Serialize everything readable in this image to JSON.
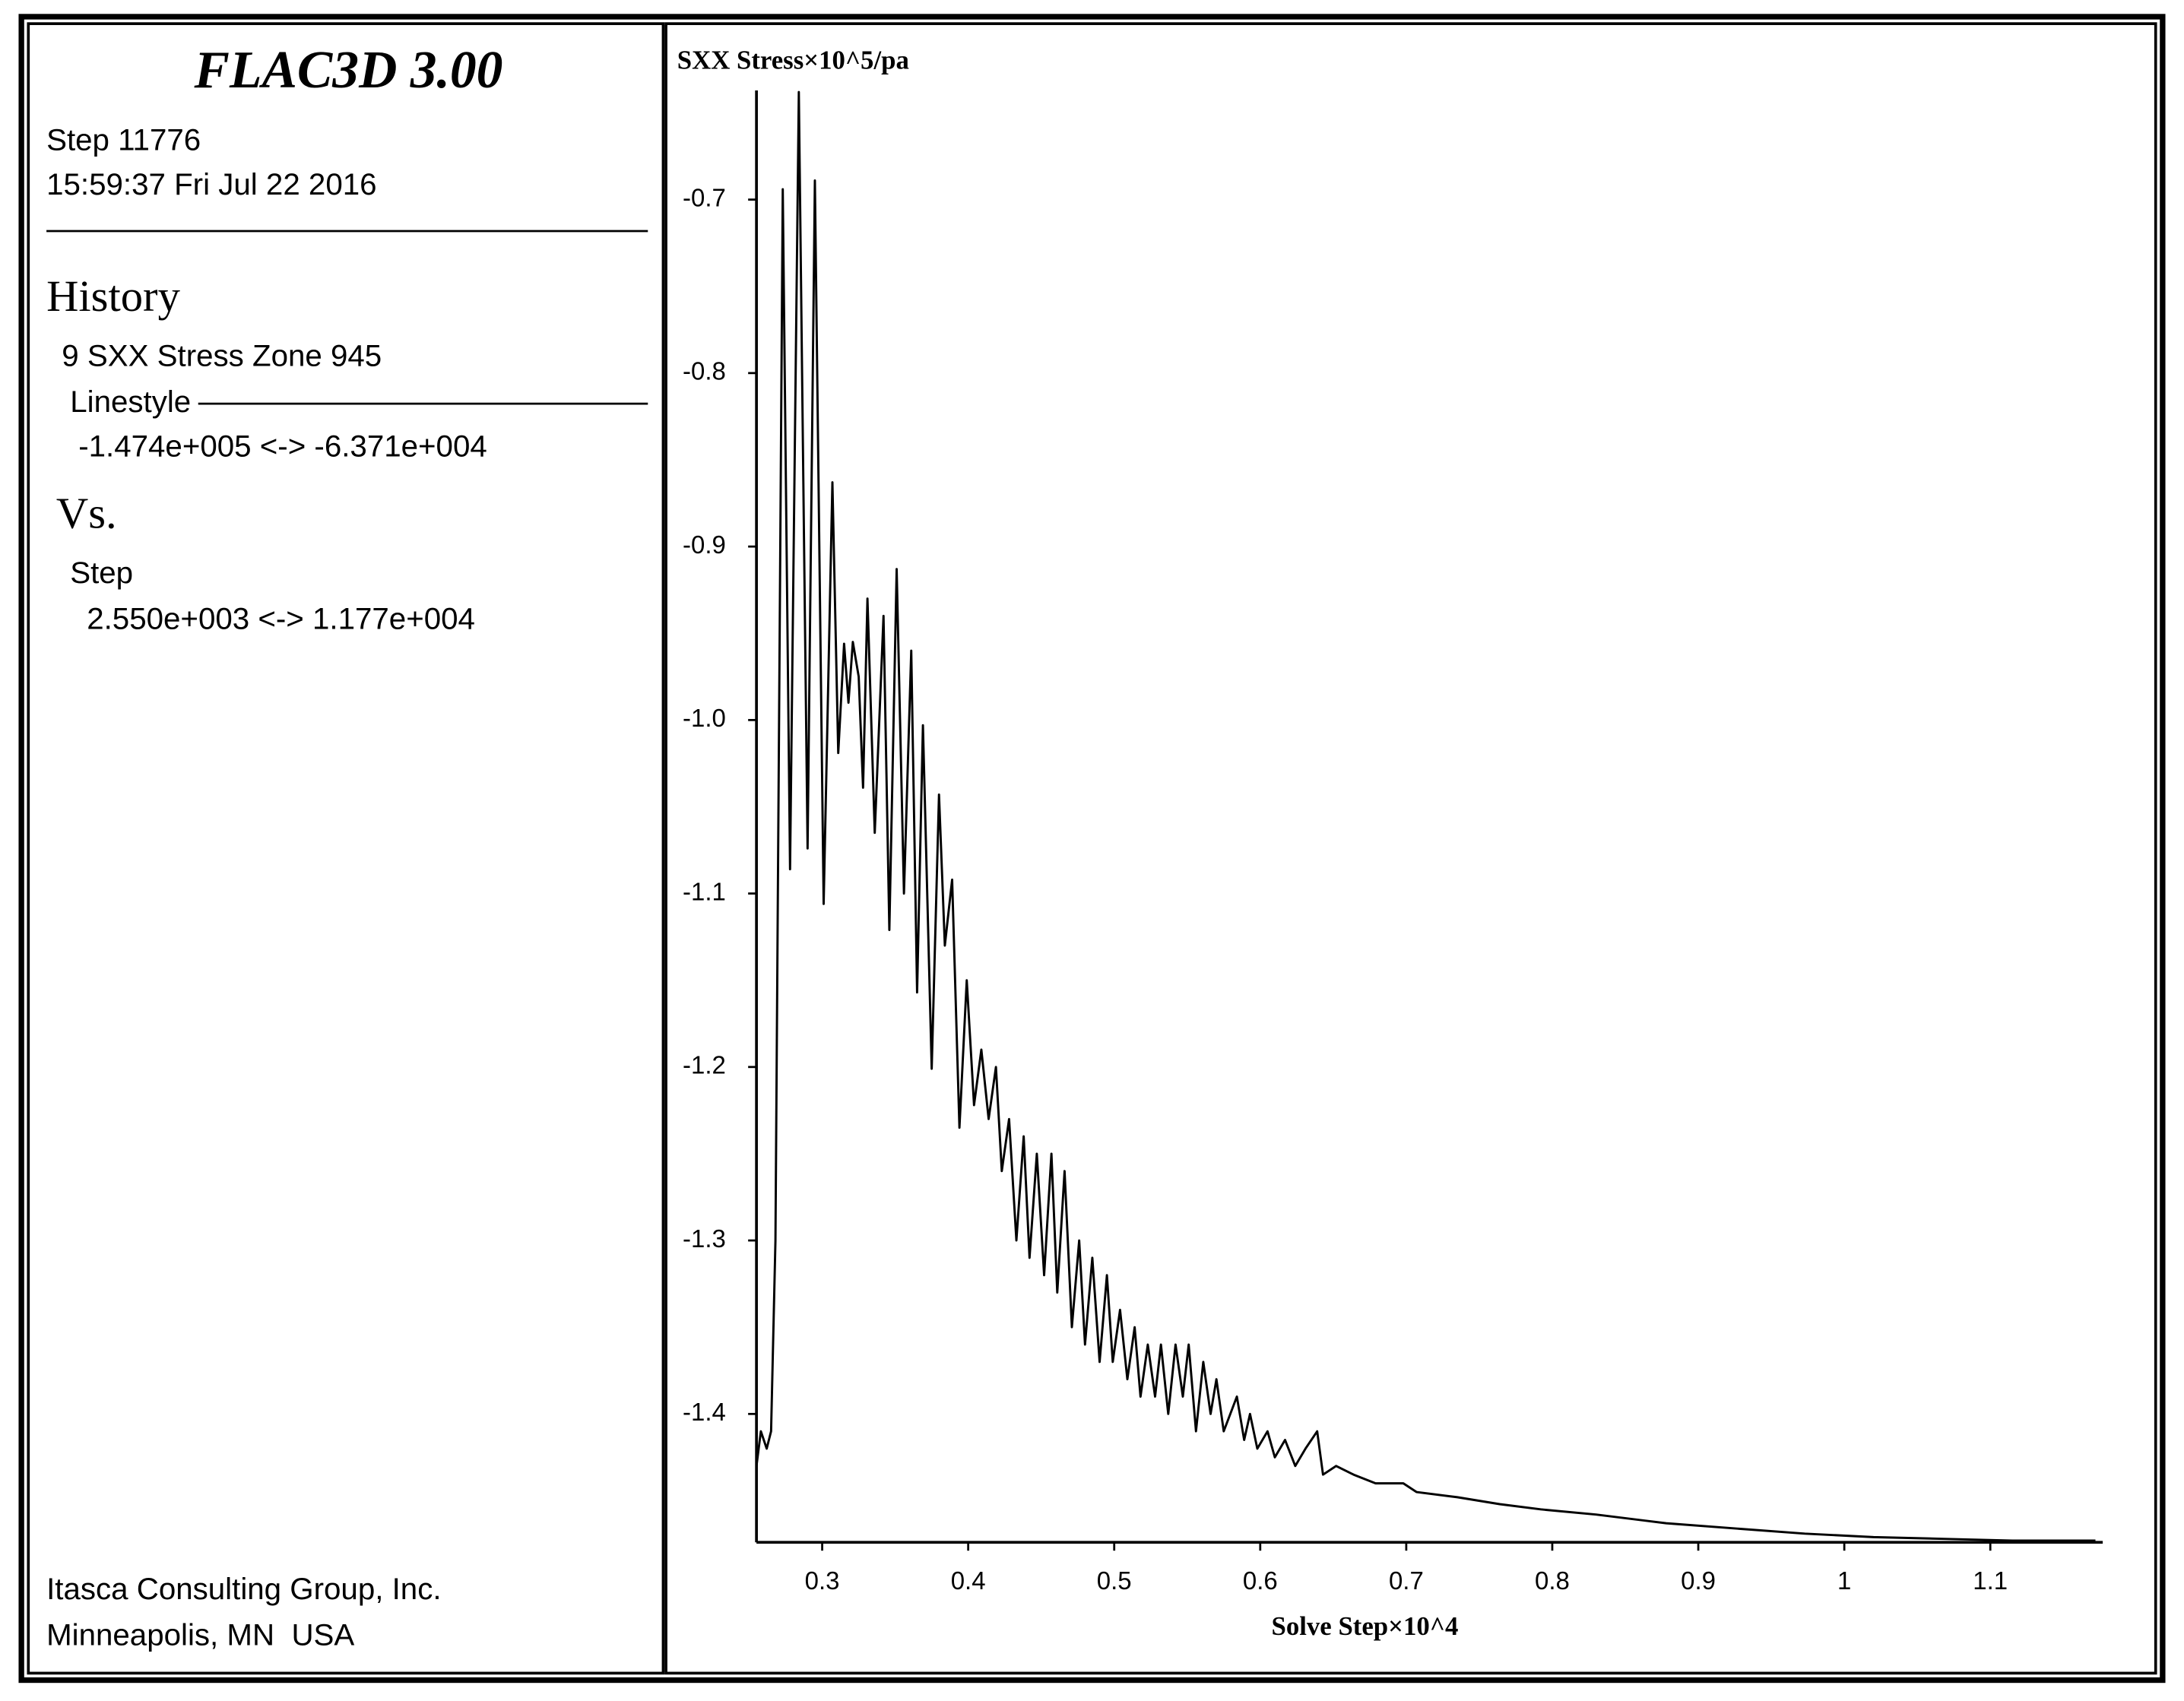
{
  "info_panel": {
    "title": "FLAC3D 3.00",
    "step": "Step 11776",
    "timestamp": "15:59:37 Fri Jul 22 2016",
    "history_heading": "History",
    "history_item": "9 SXX Stress Zone 945",
    "linestyle": "Linestyle",
    "history_range": "-1.474e+005 <-> -6.371e+004",
    "vs": "Vs.",
    "vs_item": "Step",
    "vs_range": "2.550e+003 <-> 1.177e+004",
    "company": "Itasca Consulting Group, Inc.",
    "location": "Minneapolis, MN  USA"
  },
  "chart_data": {
    "type": "line",
    "ylabel": "SXX Stress×10^5/pa",
    "xlabel": "Solve Step×10^4",
    "color": "#000000",
    "xlim": [
      0.255,
      1.177
    ],
    "ylim": [
      -1.474,
      -0.6371
    ],
    "xticks": [
      0.3,
      0.4,
      0.5,
      0.6,
      0.7,
      0.8,
      0.9,
      1.0,
      1.1
    ],
    "yticks": [
      -0.7,
      -0.8,
      -0.9,
      {
        "value": -1,
        "label": "-1.0"
      },
      -1.1,
      -1.2,
      -1.3,
      -1.4
    ],
    "x": [
      0.255,
      0.258,
      0.262,
      0.265,
      0.268,
      0.273,
      0.278,
      0.284,
      0.29,
      0.295,
      0.301,
      0.307,
      0.311,
      0.315,
      0.318,
      0.321,
      0.325,
      0.328,
      0.331,
      0.336,
      0.342,
      0.346,
      0.351,
      0.356,
      0.361,
      0.365,
      0.369,
      0.375,
      0.38,
      0.384,
      0.389,
      0.394,
      0.399,
      0.404,
      0.409,
      0.414,
      0.419,
      0.423,
      0.428,
      0.433,
      0.438,
      0.442,
      0.447,
      0.452,
      0.457,
      0.461,
      0.466,
      0.471,
      0.476,
      0.48,
      0.485,
      0.49,
      0.495,
      0.499,
      0.504,
      0.509,
      0.514,
      0.518,
      0.523,
      0.528,
      0.532,
      0.537,
      0.542,
      0.547,
      0.551,
      0.556,
      0.561,
      0.566,
      0.57,
      0.575,
      0.584,
      0.589,
      0.593,
      0.598,
      0.605,
      0.61,
      0.617,
      0.624,
      0.631,
      0.639,
      0.643,
      0.652,
      0.664,
      0.679,
      0.698,
      0.707,
      0.735,
      0.764,
      0.792,
      0.83,
      0.878,
      0.925,
      0.973,
      1.02,
      1.068,
      1.115,
      1.172
    ],
    "values": [
      -1.43,
      -1.41,
      -1.42,
      -1.41,
      -1.3,
      -0.694,
      -1.086,
      -0.638,
      -1.074,
      -0.689,
      -1.106,
      -0.863,
      -1.019,
      -0.956,
      -0.99,
      -0.955,
      -0.975,
      -1.039,
      -0.93,
      -1.065,
      -0.94,
      -1.121,
      -0.913,
      -1.1,
      -0.96,
      -1.157,
      -1.003,
      -1.201,
      -1.043,
      -1.13,
      -1.092,
      -1.235,
      -1.15,
      -1.222,
      -1.19,
      -1.23,
      -1.2,
      -1.26,
      -1.23,
      -1.3,
      -1.24,
      -1.31,
      -1.25,
      -1.32,
      -1.25,
      -1.33,
      -1.26,
      -1.35,
      -1.3,
      -1.36,
      -1.31,
      -1.37,
      -1.32,
      -1.37,
      -1.34,
      -1.38,
      -1.35,
      -1.39,
      -1.36,
      -1.39,
      -1.36,
      -1.4,
      -1.36,
      -1.39,
      -1.36,
      -1.41,
      -1.37,
      -1.4,
      -1.38,
      -1.41,
      -1.39,
      -1.415,
      -1.4,
      -1.42,
      -1.41,
      -1.425,
      -1.415,
      -1.43,
      -1.42,
      -1.41,
      -1.435,
      -1.43,
      -1.435,
      -1.44,
      -1.44,
      -1.445,
      -1.448,
      -1.452,
      -1.455,
      -1.458,
      -1.463,
      -1.466,
      -1.469,
      -1.471,
      -1.472,
      -1.473,
      -1.473
    ]
  }
}
